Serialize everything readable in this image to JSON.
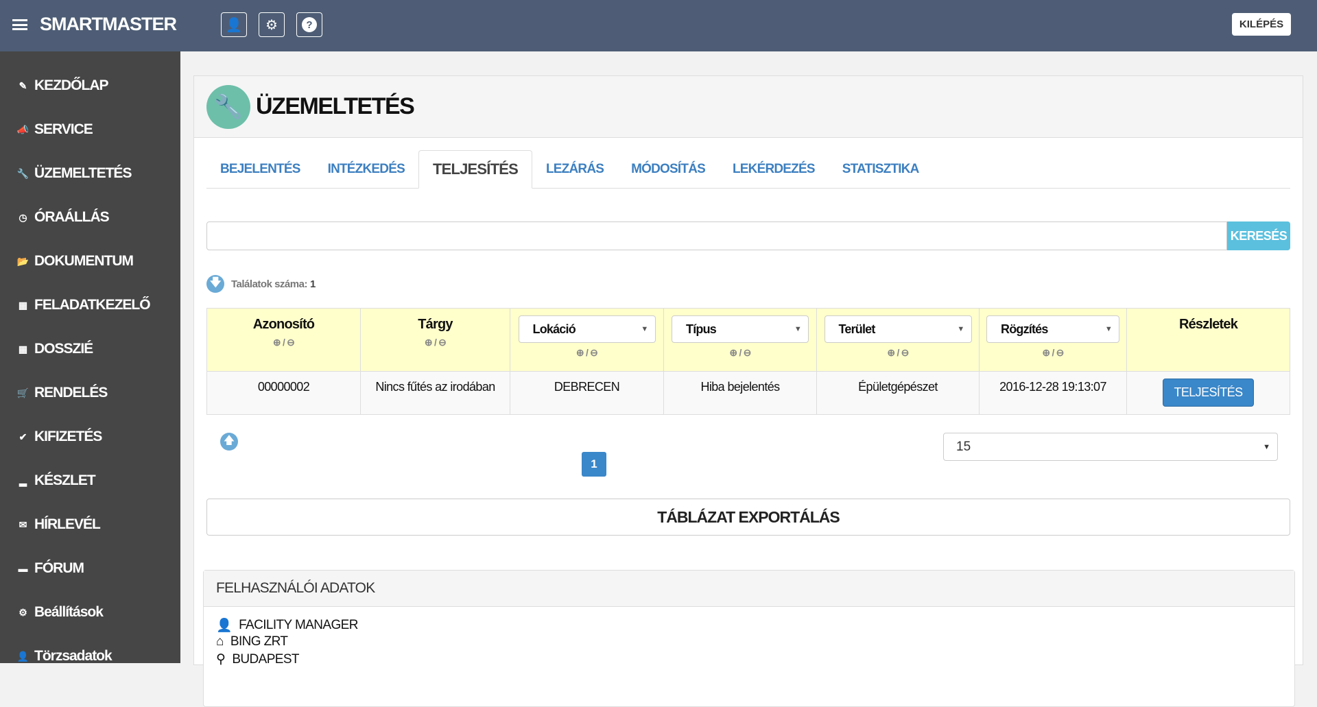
{
  "header": {
    "brand": "SMARTMASTER",
    "logout": "KILÉPÉS",
    "icons": [
      "user-icon",
      "gear-icon",
      "question-icon"
    ]
  },
  "sidebar": {
    "items": [
      {
        "label": "KEZDŐLAP",
        "icon": "edit-icon"
      },
      {
        "label": "SERVICE",
        "icon": "bullhorn-icon"
      },
      {
        "label": "ÜZEMELTETÉS",
        "icon": "wrench-icon"
      },
      {
        "label": "ÓRAÁLLÁS",
        "icon": "clock-icon"
      },
      {
        "label": "DOKUMENTUM",
        "icon": "folder-icon"
      },
      {
        "label": "FELADATKEZELŐ",
        "icon": "calendar-icon"
      },
      {
        "label": "DOSSZIÉ",
        "icon": "grid-icon"
      },
      {
        "label": "RENDELÉS",
        "icon": "cart-icon"
      },
      {
        "label": "KIFIZETÉS",
        "icon": "check-circle-icon"
      },
      {
        "label": "KÉSZLET",
        "icon": "bar-chart-icon"
      },
      {
        "label": "HÍRLEVÉL",
        "icon": "envelope-icon"
      },
      {
        "label": "FÓRUM",
        "icon": "comment-icon"
      },
      {
        "label": "Beállítások",
        "icon": "cog-icon"
      },
      {
        "label": "Törzsadatok",
        "icon": "user-icon"
      }
    ]
  },
  "page": {
    "title": "ÜZEMELTETÉS",
    "tabs": [
      "BEJELENTÉS",
      "INTÉZKEDÉS",
      "TELJESÍTÉS",
      "LEZÁRÁS",
      "MÓDOSÍTÁS",
      "LEKÉRDEZÉS",
      "STATISZTIKA"
    ],
    "active_tab": "TELJESÍTÉS",
    "search": {
      "value": "",
      "button": "KERESÉS"
    },
    "results_label": "Találatok száma:",
    "results_count": "1",
    "table": {
      "headers": [
        "Azonosító",
        "Tárgy",
        "Lokáció",
        "Típus",
        "Terület",
        "Rögzítés",
        "Részletek"
      ],
      "plusminus": "/",
      "rows": [
        {
          "id": "00000002",
          "subject": "Nincs fűtés az irodában",
          "location": "DEBRECEN",
          "type": "Hiba bejelentés",
          "area": "Épületgépészet",
          "recorded": "2016-12-28 19:13:07",
          "action": "TELJESÍTÉS"
        }
      ]
    },
    "pagination": {
      "current": "1",
      "page_size": "15"
    },
    "export": "TÁBLÁZAT EXPORTÁLÁS"
  },
  "user_panel": {
    "title": "FELHASZNÁLÓI ADATOK",
    "items": [
      {
        "icon": "user-icon",
        "text": "FACILITY MANAGER"
      },
      {
        "icon": "home-icon",
        "text": "BING ZRT"
      },
      {
        "icon": "location-icon",
        "text": "BUDAPEST"
      }
    ]
  }
}
